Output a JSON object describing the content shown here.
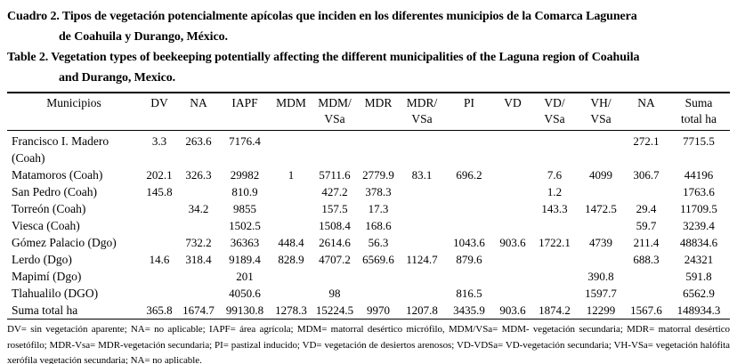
{
  "document": {
    "title_es_line1": "Cuadro 2. Tipos de vegetación potencialmente apícolas que inciden en los diferentes municipios de la Comarca Lagunera",
    "title_es_line2": "de Coahuila y Durango, México.",
    "title_en_line1": "Table 2. Vegetation types of beekeeping potentially affecting the different municipalities of the Laguna region of Coahuila",
    "title_en_line2": "and Durango, Mexico.",
    "footnote": "DV= sin vegetación aparente; NA= no aplicable; IAPF= área agrícola; MDM= matorral desértico micrófilo, MDM/VSa= MDM- vegetación secundaria; MDR= matorral desértico rosetófilo; MDR-Vsa= MDR-vegetación secundaria; PI= pastizal inducido; VD= vegetación de desiertos arenosos; VD-VDSa= VD-vegetación secundaria; VH-VSa= vegetación halófita xerófila vegetación secundaria; NA= no aplicable."
  },
  "table": {
    "columns": [
      "Municipios",
      "DV",
      "NA",
      "IAPF",
      "MDM",
      "MDM/\nVSa",
      "MDR",
      "MDR/\nVSa",
      "PI",
      "VD",
      "VD/\nVSa",
      "VH/\nVSa",
      "NA",
      "Suma\ntotal ha"
    ],
    "rows": [
      {
        "municipio": "Francisco I. Madero (Coah)",
        "values": [
          "3.3",
          "263.6",
          "7176.4",
          "",
          "",
          "",
          "",
          "",
          "",
          "",
          "",
          "272.1",
          "7715.5"
        ]
      },
      {
        "municipio": "Matamoros (Coah)",
        "values": [
          "202.1",
          "326.3",
          "29982",
          "1",
          "5711.6",
          "2779.9",
          "83.1",
          "696.2",
          "",
          "7.6",
          "4099",
          "306.7",
          "44196"
        ]
      },
      {
        "municipio": "San Pedro (Coah)",
        "values": [
          "145.8",
          "",
          "810.9",
          "",
          "427.2",
          "378.3",
          "",
          "",
          "",
          "1.2",
          "",
          "",
          "1763.6"
        ]
      },
      {
        "municipio": "Torreón (Coah)",
        "values": [
          "",
          "34.2",
          "9855",
          "",
          "157.5",
          "17.3",
          "",
          "",
          "",
          "143.3",
          "1472.5",
          "29.4",
          "11709.5"
        ]
      },
      {
        "municipio": "Viesca (Coah)",
        "values": [
          "",
          "",
          "1502.5",
          "",
          "1508.4",
          "168.6",
          "",
          "",
          "",
          "",
          "",
          "59.7",
          "3239.4"
        ]
      },
      {
        "municipio": "Gómez Palacio (Dgo)",
        "values": [
          "",
          "732.2",
          "36363",
          "448.4",
          "2614.6",
          "56.3",
          "",
          "1043.6",
          "903.6",
          "1722.1",
          "4739",
          "211.4",
          "48834.6"
        ]
      },
      {
        "municipio": "Lerdo (Dgo)",
        "values": [
          "14.6",
          "318.4",
          "9189.4",
          "828.9",
          "4707.2",
          "6569.6",
          "1124.7",
          "879.6",
          "",
          "",
          "",
          "688.3",
          "24321"
        ]
      },
      {
        "municipio": "Mapimí (Dgo)",
        "values": [
          "",
          "",
          "201",
          "",
          "",
          "",
          "",
          "",
          "",
          "",
          "390.8",
          "",
          "591.8"
        ]
      },
      {
        "municipio": "Tlahualilo (DGO)",
        "values": [
          "",
          "",
          "4050.6",
          "",
          "98",
          "",
          "",
          "816.5",
          "",
          "",
          "1597.7",
          "",
          "6562.9"
        ]
      },
      {
        "municipio": "Suma total ha",
        "values": [
          "365.8",
          "1674.7",
          "99130.8",
          "1278.3",
          "15224.5",
          "9970",
          "1207.8",
          "3435.9",
          "903.6",
          "1874.2",
          "12299",
          "1567.6",
          "148934.3"
        ],
        "is_total": true
      }
    ]
  }
}
